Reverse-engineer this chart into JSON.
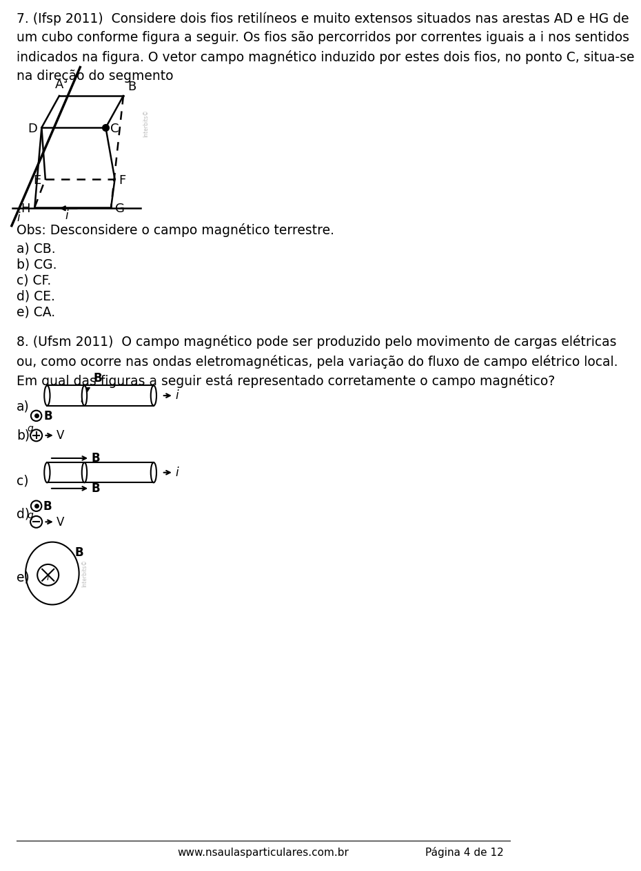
{
  "bg_color": "#ffffff",
  "text_color": "#000000",
  "q7_text": "7. (Ifsp 2011)  Considere dois fios retilíneos e muito extensos situados nas arestas AD e HG de\num cubo conforme figura a seguir. Os fios são percorridos por correntes iguais a i nos sentidos\nindicados na figura. O vetor campo magnético induzido por estes dois fios, no ponto C, situa-se\nna direção do segmento",
  "obs_text": "Obs: Desconsidere o campo magnético terrestre.",
  "answers_q7": [
    "a) CB.",
    "b) CG.",
    "c) CF.",
    "d) CE.",
    "e) CA."
  ],
  "q8_text": "8. (Ufsm 2011)  O campo magnético pode ser produzido pelo movimento de cargas elétricas\nou, como ocorre nas ondas eletromagnéticas, pela variação do fluxo de campo elétrico local.\nEm qual das figuras a seguir está representado corretamente o campo magnético?",
  "footer_url": "www.nsaulasparticulares.com.br",
  "footer_page": "Página 4 de 12"
}
